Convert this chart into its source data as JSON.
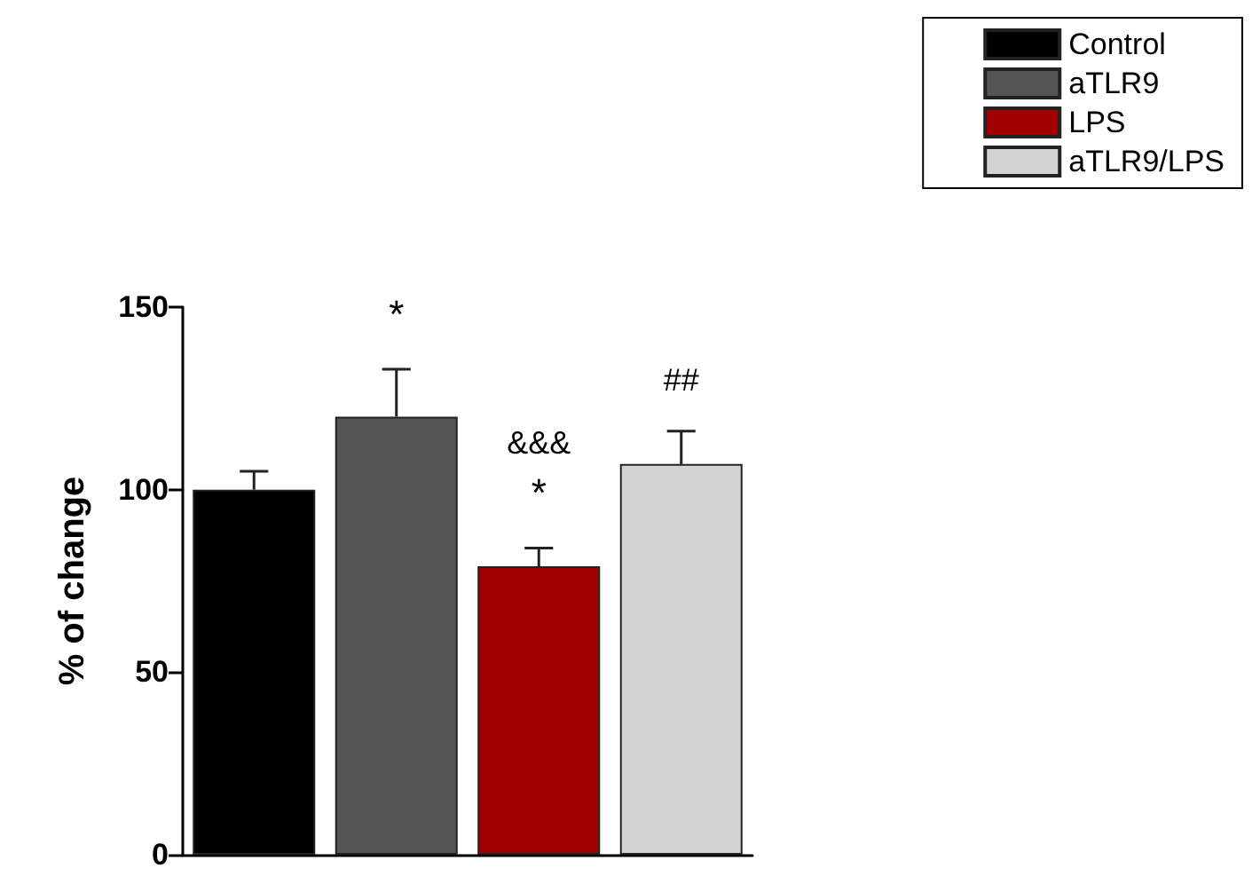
{
  "chart_data": {
    "type": "bar",
    "ylabel": "% of change",
    "categories": [
      null,
      null,
      null,
      null
    ],
    "series": [
      {
        "name": "Control",
        "color": "#000000",
        "values": [
          100,
          null,
          null,
          null
        ],
        "errors": [
          [
            100,
            105
          ],
          null,
          null,
          null
        ]
      },
      {
        "name": "aTLR9",
        "color": "#555555",
        "values": [
          null,
          120,
          null,
          null
        ],
        "errors": [
          null,
          [
            120,
            133
          ],
          null,
          null
        ]
      },
      {
        "name": "LPS",
        "color": "#a00000",
        "values": [
          null,
          null,
          79,
          null
        ],
        "errors": [
          null,
          null,
          [
            79,
            84
          ],
          null
        ]
      },
      {
        "name": "aTLR9/LPS",
        "color": "#d3d3d3",
        "values": [
          null,
          null,
          null,
          107
        ],
        "errors": [
          null,
          null,
          null,
          [
            107,
            116
          ]
        ]
      }
    ],
    "annotations": [
      "*",
      "&&&",
      "*",
      "##"
    ],
    "ylim": [
      0,
      150
    ],
    "yticks": [
      0,
      50,
      100,
      150
    ],
    "grid": false,
    "legend": "top right"
  }
}
